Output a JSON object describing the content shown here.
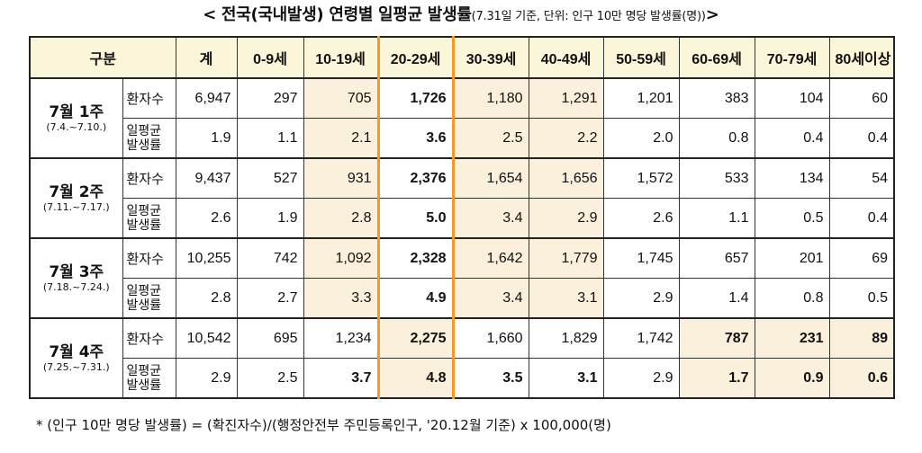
{
  "title": {
    "main": "< 전국(국내발생) 연령별 일평균 발생률",
    "sub": "(7.31일 기준, 단위: 인구 10만 명당 발생률(명))",
    "close": ">"
  },
  "table": {
    "headers": [
      "구분",
      "계",
      "0-9세",
      "10-19세",
      "20-29세",
      "30-39세",
      "40-49세",
      "50-59세",
      "60-69세",
      "70-79세",
      "80세이상"
    ],
    "row_labels": {
      "cases": "환자수",
      "rate_line1": "일평균",
      "rate_line2": "발생률"
    },
    "weeks": [
      {
        "week": "7월 1주",
        "range": "(7.4.~7.10.)",
        "cases": [
          "6,947",
          "297",
          "705",
          "1,726",
          "1,180",
          "1,291",
          "1,201",
          "383",
          "104",
          "60"
        ],
        "rate": [
          "1.9",
          "1.1",
          "2.1",
          "3.6",
          "2.5",
          "2.2",
          "2.0",
          "0.8",
          "0.4",
          "0.4"
        ]
      },
      {
        "week": "7월 2주",
        "range": "(7.11.~7.17.)",
        "cases": [
          "9,437",
          "527",
          "931",
          "2,376",
          "1,654",
          "1,656",
          "1,572",
          "533",
          "134",
          "54"
        ],
        "rate": [
          "2.6",
          "1.9",
          "2.8",
          "5.0",
          "3.4",
          "2.9",
          "2.6",
          "1.1",
          "0.5",
          "0.4"
        ]
      },
      {
        "week": "7월 3주",
        "range": "(7.18.~7.24.)",
        "cases": [
          "10,255",
          "742",
          "1,092",
          "2,328",
          "1,642",
          "1,779",
          "1,745",
          "657",
          "201",
          "69"
        ],
        "rate": [
          "2.8",
          "2.7",
          "3.3",
          "4.9",
          "3.4",
          "3.1",
          "2.9",
          "1.4",
          "0.8",
          "0.5"
        ]
      },
      {
        "week": "7월 4주",
        "range": "(7.25.~7.31.)",
        "cases": [
          "10,542",
          "695",
          "1,234",
          "2,275",
          "1,660",
          "1,829",
          "1,742",
          "787",
          "231",
          "89"
        ],
        "rate": [
          "2.9",
          "2.5",
          "3.7",
          "4.8",
          "3.5",
          "3.1",
          "2.9",
          "1.7",
          "0.9",
          "0.6"
        ]
      }
    ],
    "highlight_color": "#fbf0dc",
    "header_color": "#fbf5d9",
    "accent_border_color": "#f39a2b"
  },
  "footnote": "* (인구 10만 명당 발생률) = (확진자수)/(행정안전부 주민등록인구, '20.12월 기준) x 100,000(명)"
}
